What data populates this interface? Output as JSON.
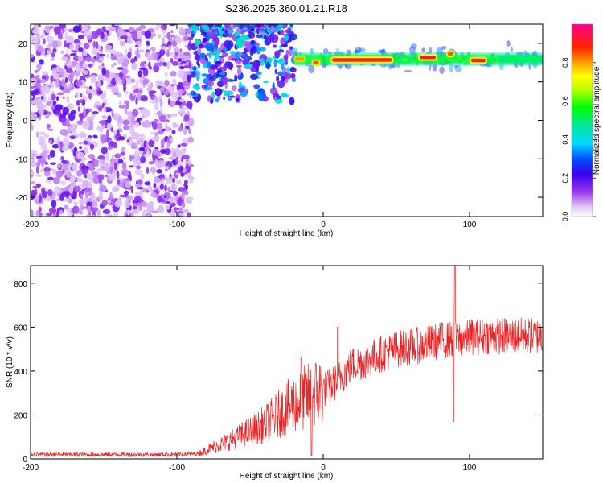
{
  "title": "S236.2025.360.01.21.R18",
  "chart_data": [
    {
      "type": "heatmap",
      "xlabel": "Height of straight line (km)",
      "ylabel": "Frequency (Hz)",
      "xlim": [
        -200,
        150
      ],
      "ylim": [
        -25,
        25
      ],
      "xticks": [
        -200,
        -100,
        0,
        100
      ],
      "xtick_labels": [
        "-200",
        "-100",
        "0",
        "100"
      ],
      "yticks": [
        -20,
        -10,
        0,
        10,
        20
      ],
      "ytick_labels": [
        "-20",
        "-10",
        "0",
        "10",
        "20"
      ],
      "colorbar": {
        "label": "Normalized spectral amplitude",
        "range": [
          0,
          1
        ],
        "ticks": [
          0,
          0.2,
          0.4,
          0.6,
          0.8
        ],
        "tick_labels": [
          "0.0",
          "0.2",
          "0.4",
          "0.6",
          "0.8"
        ],
        "colormap": "rainbow (white-purple-blue-cyan-green-yellow-orange-red-magenta)"
      },
      "regions": [
        {
          "x": [
            -200,
            -90
          ],
          "y": [
            -25,
            25
          ],
          "description_value": "scattered noise",
          "amplitude": [
            0.05,
            0.2
          ]
        },
        {
          "x": [
            -90,
            -20
          ],
          "y": [
            5,
            25
          ],
          "amplitude": [
            0.1,
            0.45
          ]
        },
        {
          "x": [
            -20,
            150
          ],
          "y": [
            15,
            17
          ],
          "amplitude": [
            0.6,
            0.95
          ]
        }
      ],
      "line_segments": [
        {
          "x": [
            -20,
            -12
          ],
          "y": 16,
          "amplitude": 0.8
        },
        {
          "x": [
            -8,
            -2
          ],
          "y": 15,
          "amplitude": 0.85
        },
        {
          "x": [
            5,
            48
          ],
          "y": 15.7,
          "amplitude": 0.9
        },
        {
          "x": [
            52,
            60
          ],
          "y": 15.7,
          "amplitude": 0.6
        },
        {
          "x": [
            65,
            78
          ],
          "y": 16.4,
          "amplitude": 0.92
        },
        {
          "x": [
            84,
            90
          ],
          "y": 17.3,
          "amplitude": 0.85
        },
        {
          "x": [
            100,
            112
          ],
          "y": 15.6,
          "amplitude": 0.9
        },
        {
          "x": [
            120,
            150
          ],
          "y": 16,
          "amplitude": 0.55
        }
      ]
    },
    {
      "type": "line",
      "xlabel": "Height of straight line (km)",
      "ylabel": "SNR (10 * v/v)",
      "xlim": [
        -200,
        150
      ],
      "ylim": [
        0,
        880
      ],
      "xticks": [
        -200,
        -100,
        0,
        100
      ],
      "xtick_labels": [
        "-200",
        "-100",
        "0",
        "100"
      ],
      "yticks": [
        0,
        200,
        400,
        600,
        800
      ],
      "ytick_labels": [
        "0",
        "200",
        "400",
        "600",
        "800"
      ],
      "series": [
        {
          "color": "#ee2222",
          "x": [
            -200,
            -150,
            -100,
            -85,
            -75,
            -65,
            -55,
            -45,
            -35,
            -25,
            -15,
            -5,
            5,
            10,
            20,
            30,
            40,
            50,
            60,
            70,
            80,
            90,
            100,
            110,
            120,
            130,
            140,
            150
          ],
          "y": [
            20,
            20,
            20,
            25,
            55,
            80,
            110,
            140,
            180,
            230,
            270,
            300,
            330,
            360,
            430,
            450,
            480,
            500,
            510,
            520,
            540,
            545,
            555,
            560,
            560,
            560,
            560,
            560
          ]
        }
      ],
      "spikes": [
        {
          "x": -15,
          "y": 460
        },
        {
          "x": -8,
          "y": 15
        },
        {
          "x": 10,
          "y": 600
        },
        {
          "x": 90,
          "y": 880
        },
        {
          "x": 89,
          "y": 170
        },
        {
          "x": 100,
          "y": 630
        }
      ]
    }
  ]
}
